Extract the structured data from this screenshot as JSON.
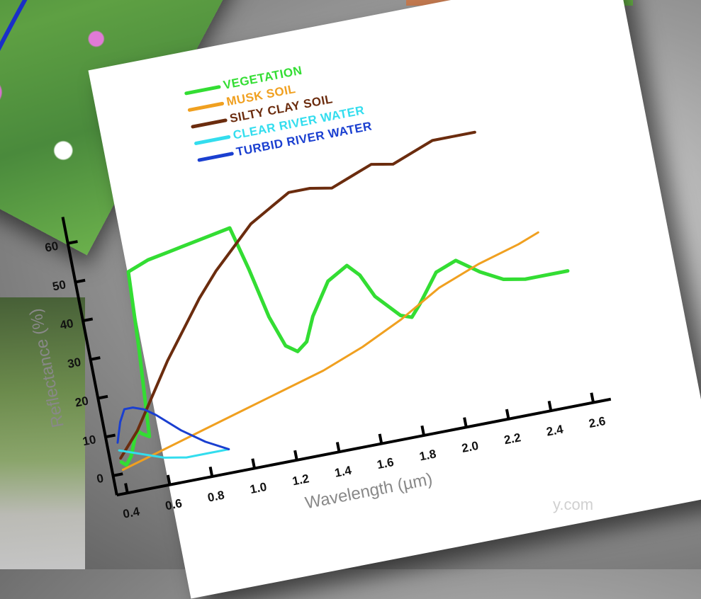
{
  "chart_data": {
    "type": "line",
    "xlabel": "Wavelength (µm)",
    "ylabel": "Reflectance (%)",
    "xlim": [
      0.35,
      2.65
    ],
    "ylim": [
      -5,
      65
    ],
    "x_ticks": [
      "0.4",
      "0.6",
      "0.8",
      "1.0",
      "1.2",
      "1.4",
      "1.6",
      "1.8",
      "2.0",
      "2.2",
      "2.4",
      "2.6"
    ],
    "y_ticks": [
      "0",
      "10",
      "20",
      "30",
      "40",
      "50",
      "60"
    ],
    "series": [
      {
        "name": "VEGETATION",
        "color": "#33dd33",
        "x": [
          0.4,
          0.42,
          0.45,
          0.48,
          0.5,
          0.52,
          0.55,
          0.58,
          0.6,
          0.7,
          0.8,
          0.9,
          1.0,
          1.1,
          1.15,
          1.2,
          1.25,
          1.3,
          1.35,
          1.4,
          1.5,
          1.6,
          1.65,
          1.7,
          1.8,
          1.85,
          1.9,
          2.0,
          2.1,
          2.15,
          2.2,
          2.3,
          2.4,
          2.5,
          2.6
        ],
        "y": [
          3,
          2,
          4,
          8,
          10,
          9,
          8,
          30,
          50,
          52,
          53,
          54,
          55,
          56,
          45,
          32,
          24,
          22,
          24,
          30,
          38,
          41,
          38,
          32,
          26,
          25,
          28,
          35,
          37,
          35,
          33,
          30,
          29,
          29,
          29
        ]
      },
      {
        "name": "MUSK SOIL",
        "color": "#f0a020",
        "x": [
          0.4,
          0.6,
          0.8,
          1.0,
          1.2,
          1.4,
          1.6,
          1.8,
          2.0,
          2.2,
          2.4,
          2.5
        ],
        "y": [
          1,
          4,
          7,
          10,
          13,
          16,
          20,
          25,
          31,
          35,
          38,
          40
        ]
      },
      {
        "name": "SILTY CLAY SOIL",
        "color": "#6b2c0e",
        "x": [
          0.4,
          0.5,
          0.6,
          0.7,
          0.8,
          0.9,
          1.0,
          1.1,
          1.2,
          1.3,
          1.4,
          1.5,
          1.6,
          1.7,
          1.8,
          1.9,
          2.0,
          2.1,
          2.2,
          2.3
        ],
        "y": [
          4,
          10,
          18,
          26,
          33,
          40,
          46,
          51,
          56,
          59,
          62,
          62,
          61,
          63,
          65,
          64,
          66,
          68,
          68,
          68
        ]
      },
      {
        "name": "CLEAR RIVER WATER",
        "color": "#33ddee",
        "x": [
          0.4,
          0.45,
          0.5,
          0.6,
          0.7,
          0.8,
          0.9
        ],
        "y": [
          6,
          5,
          4,
          2,
          1,
          1,
          1
        ]
      },
      {
        "name": "TURBID RIVER WATER",
        "color": "#1a3fd0",
        "x": [
          0.4,
          0.43,
          0.46,
          0.5,
          0.55,
          0.6,
          0.7,
          0.8,
          0.9
        ],
        "y": [
          8,
          13,
          16,
          16,
          15,
          13,
          8,
          4,
          1
        ]
      }
    ]
  },
  "background": {
    "strip_colors": [
      "#c47a50",
      "#7ed957",
      "#7ed957"
    ],
    "watermark": "y.com"
  }
}
